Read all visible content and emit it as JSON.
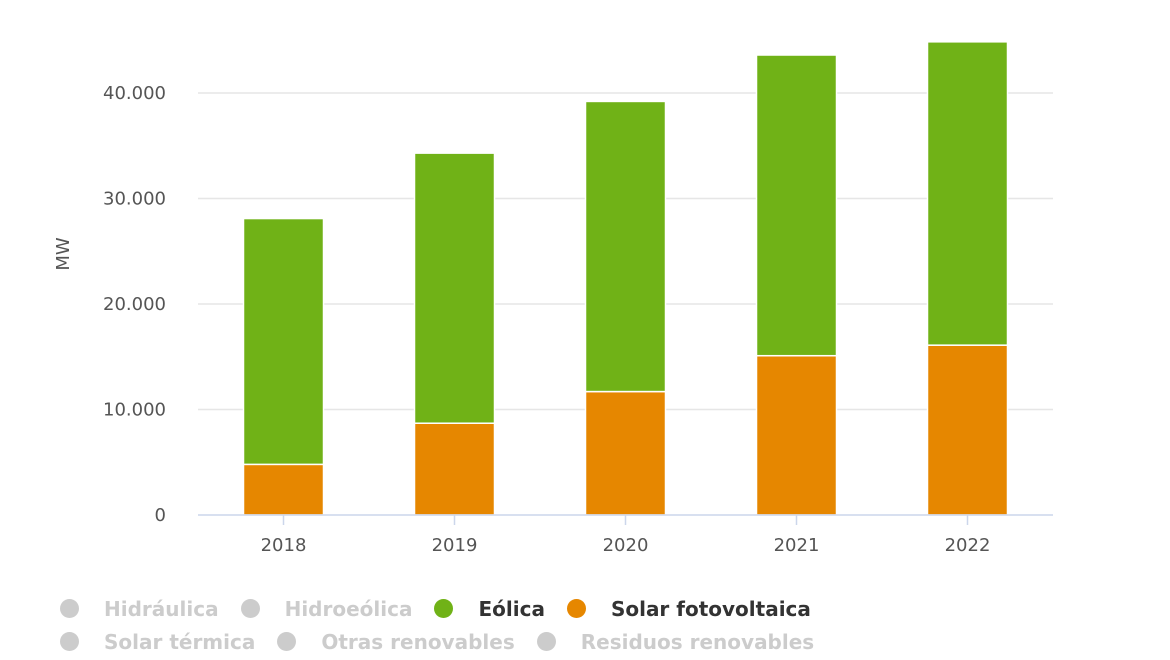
{
  "chart_data": {
    "type": "bar",
    "stacked": true,
    "title": "",
    "xlabel": "",
    "ylabel": "MW",
    "ylim": [
      0,
      45000
    ],
    "yticks": [
      0,
      10000,
      20000,
      30000,
      40000
    ],
    "ytick_labels": [
      "0",
      "10.000",
      "20.000",
      "30.000",
      "40.000"
    ],
    "grid": true,
    "categories": [
      "2018",
      "2019",
      "2020",
      "2021",
      "2022"
    ],
    "series": [
      {
        "name": "Solar fotovoltaica",
        "color": "#e68700",
        "values": [
          4800,
          8700,
          11700,
          15100,
          16100
        ]
      },
      {
        "name": "Eólica",
        "color": "#70b217",
        "values": [
          23300,
          25600,
          27500,
          28500,
          28750
        ]
      }
    ],
    "legend_position": "bottom-left"
  },
  "legend": {
    "rows": [
      [
        {
          "label": "Hidráulica",
          "color": "#cccccc",
          "active": false
        },
        {
          "label": "Hidroeólica",
          "color": "#cccccc",
          "active": false
        },
        {
          "label": "Eólica",
          "color": "#70b217",
          "active": true
        },
        {
          "label": "Solar fotovoltaica",
          "color": "#e68700",
          "active": true
        }
      ],
      [
        {
          "label": "Solar térmica",
          "color": "#cccccc",
          "active": false
        },
        {
          "label": "Otras renovables",
          "color": "#cccccc",
          "active": false
        },
        {
          "label": "Residuos renovables",
          "color": "#cccccc",
          "active": false
        }
      ]
    ]
  }
}
